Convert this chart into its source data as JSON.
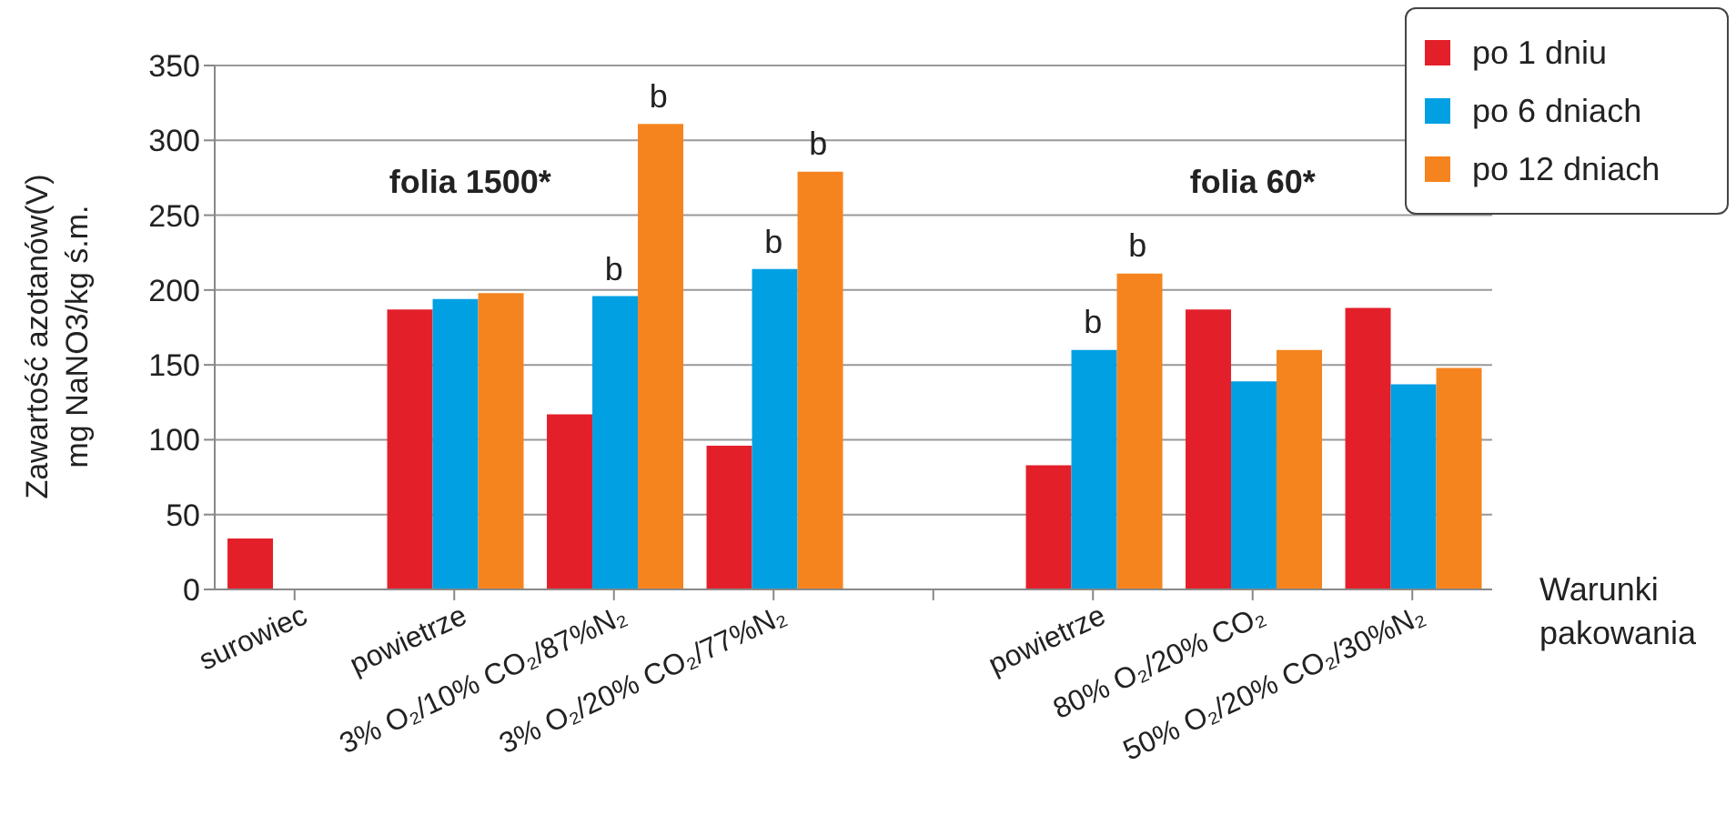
{
  "chart_data": {
    "type": "bar",
    "categories": [
      "surowiec",
      "powietrze",
      "3% O₂/10% CO₂/87%N₂",
      "3% O₂/20% CO₂/77%N₂",
      null,
      "powietrze",
      "80% O₂/20% CO₂",
      "50% O₂/20% CO₂/30%N₂"
    ],
    "series": [
      {
        "name": "po 1 dniu",
        "color": "#e3202a",
        "values": [
          34,
          187,
          117,
          96,
          null,
          83,
          187,
          188
        ]
      },
      {
        "name": "po 6 dniach",
        "color": "#00a0e3",
        "values": [
          null,
          194,
          196,
          214,
          null,
          160,
          139,
          137
        ]
      },
      {
        "name": "po 12 dniach",
        "color": "#f5841f",
        "values": [
          null,
          198,
          311,
          279,
          null,
          211,
          160,
          148
        ]
      }
    ],
    "ylabel": "Zawartość azotanów(V)\nmg NaNO3/kg ś.m.",
    "ylim": [
      0,
      350
    ],
    "yticks": [
      0,
      50,
      100,
      150,
      200,
      250,
      300,
      350
    ],
    "grid": "y",
    "legend": "top right",
    "annotations": [
      "folia 1500*",
      "folia 60*",
      "Warunki pakowania",
      "b",
      "b",
      "b",
      "b",
      "b",
      "b"
    ]
  }
}
